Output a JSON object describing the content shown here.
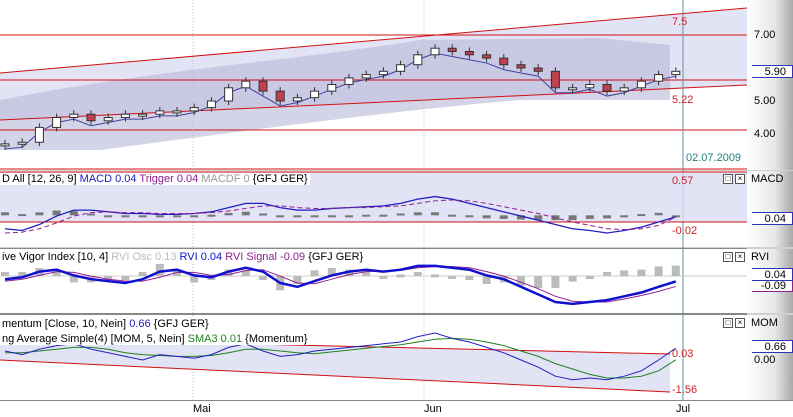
{
  "chart_data": [
    {
      "type": "candlestick",
      "title": "",
      "instrument": "GFJ GER",
      "closes": [
        3.7,
        3.75,
        4.2,
        4.5,
        4.6,
        4.4,
        4.5,
        4.6,
        4.6,
        4.7,
        4.7,
        4.8,
        5.0,
        5.4,
        5.6,
        5.3,
        5.0,
        5.1,
        5.3,
        5.5,
        5.7,
        5.8,
        5.9,
        6.1,
        6.4,
        6.6,
        6.5,
        6.4,
        6.3,
        6.1,
        6.0,
        5.9,
        5.4,
        5.4,
        5.5,
        5.3,
        5.4,
        5.6,
        5.8,
        5.9
      ],
      "y_ticks": [
        "4.00",
        "5.00",
        "7.00"
      ],
      "ylim": [
        3.0,
        8.0
      ],
      "last_value": "5.90",
      "annotations": {
        "upper": "7.5",
        "lower": "5.22",
        "date": "02.07.2009"
      },
      "x_ticks": [
        "Mai",
        "Jun",
        "Jul"
      ]
    },
    {
      "type": "line",
      "legend": {
        "name": "D All [12, 26, 9]",
        "macd": "MACD 0.04",
        "trigger": "Trigger 0.04",
        "macdf": "MACDF 0",
        "symbol": "{GFJ GER}"
      },
      "panel": "MACD",
      "last_value": "0.04",
      "annotations": {
        "upper": "0.57",
        "lower": "-0.02"
      },
      "macd": [
        -0.1,
        -0.12,
        -0.05,
        0.05,
        0.12,
        0.12,
        0.1,
        0.08,
        0.08,
        0.07,
        0.07,
        0.08,
        0.1,
        0.15,
        0.2,
        0.2,
        0.15,
        0.12,
        0.12,
        0.14,
        0.15,
        0.16,
        0.17,
        0.2,
        0.25,
        0.28,
        0.25,
        0.2,
        0.15,
        0.1,
        0.05,
        0,
        -0.05,
        -0.1,
        -0.12,
        -0.15,
        -0.12,
        -0.08,
        -0.02,
        0.04
      ],
      "trigger": [
        -0.15,
        -0.14,
        -0.1,
        -0.03,
        0.05,
        0.09,
        0.1,
        0.09,
        0.09,
        0.08,
        0.08,
        0.08,
        0.09,
        0.11,
        0.14,
        0.17,
        0.17,
        0.15,
        0.14,
        0.14,
        0.15,
        0.15,
        0.16,
        0.17,
        0.2,
        0.23,
        0.24,
        0.23,
        0.2,
        0.16,
        0.12,
        0.08,
        0.03,
        -0.02,
        -0.06,
        -0.1,
        -0.11,
        -0.1,
        -0.06,
        0.04
      ]
    },
    {
      "type": "line",
      "panel": "RVI",
      "legend": {
        "name": "ive Vigor Index [10, 4]",
        "osc": "RVI Osc 0.13",
        "rvi": "RVI 0.04",
        "signal": "RVI Signal -0.09",
        "symbol": "{GFJ GER}"
      },
      "last_value": "0.04",
      "signal_value": "-0.09",
      "rvi": [
        0.1,
        0.15,
        0.3,
        0.35,
        0.2,
        0.1,
        0.05,
        0.0,
        0.1,
        0.3,
        0.35,
        0.2,
        0.15,
        0.3,
        0.4,
        0.3,
        0.0,
        -0.1,
        0.05,
        0.2,
        0.3,
        0.35,
        0.3,
        0.35,
        0.45,
        0.45,
        0.4,
        0.35,
        0.2,
        0.1,
        -0.1,
        -0.3,
        -0.5,
        -0.55,
        -0.5,
        -0.45,
        -0.35,
        -0.25,
        -0.1,
        0.04
      ],
      "signal": [
        0.05,
        0.1,
        0.2,
        0.3,
        0.28,
        0.18,
        0.1,
        0.05,
        0.05,
        0.15,
        0.28,
        0.28,
        0.2,
        0.22,
        0.33,
        0.35,
        0.18,
        0.0,
        -0.02,
        0.1,
        0.22,
        0.3,
        0.32,
        0.33,
        0.4,
        0.43,
        0.43,
        0.4,
        0.3,
        0.18,
        0.02,
        -0.15,
        -0.35,
        -0.48,
        -0.5,
        -0.5,
        -0.42,
        -0.33,
        -0.22,
        -0.09
      ]
    },
    {
      "type": "line",
      "panel": "MOM",
      "legend": {
        "name": "mentum [Close, 10, Nein]",
        "value": "0.66",
        "symbol": "{GFJ GER}",
        "sma_name": "ng Average Simple(4) [MOM, 5, Nein]",
        "sma": "SMA3 0.01",
        "sma_symbol": "{Momentum}"
      },
      "last_value": "0.66",
      "zero": "0.00",
      "annotations": {
        "upper": "0.03",
        "lower": "-1.56"
      },
      "mom": [
        0.5,
        0.3,
        0.6,
        0.8,
        0.9,
        0.6,
        0.4,
        0.2,
        0.0,
        0.3,
        0.2,
        0.1,
        0.3,
        0.7,
        0.9,
        0.5,
        0.2,
        0.3,
        0.5,
        0.6,
        0.7,
        0.8,
        0.9,
        1.0,
        1.3,
        1.5,
        1.2,
        1.0,
        0.7,
        0.4,
        0.0,
        -0.4,
        -0.9,
        -1.1,
        -1.0,
        -1.1,
        -0.9,
        -0.6,
        0.0,
        0.66
      ],
      "sma3": [
        0.4,
        0.4,
        0.5,
        0.6,
        0.7,
        0.7,
        0.6,
        0.4,
        0.3,
        0.25,
        0.2,
        0.2,
        0.25,
        0.4,
        0.6,
        0.6,
        0.5,
        0.4,
        0.35,
        0.45,
        0.55,
        0.65,
        0.75,
        0.85,
        1.0,
        1.15,
        1.2,
        1.15,
        1.0,
        0.8,
        0.5,
        0.2,
        -0.2,
        -0.5,
        -0.8,
        -1.0,
        -1.0,
        -0.9,
        -0.6,
        0.01
      ]
    }
  ],
  "colors": {
    "macd": "#2020c0",
    "trigger": "#902090",
    "rvi": "#1010d0",
    "channel": "#d01010",
    "bg": "#dcdcf4"
  }
}
